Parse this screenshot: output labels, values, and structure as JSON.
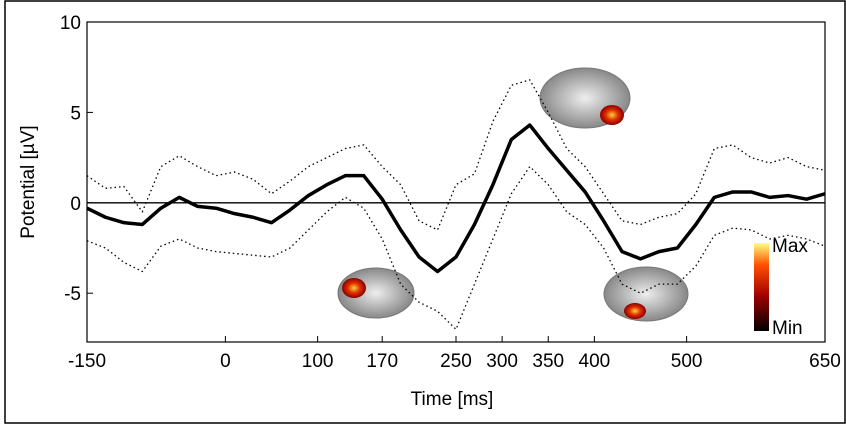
{
  "chart_data": {
    "type": "line",
    "xlabel": "Time [ms]",
    "ylabel": "Potential [µV]",
    "xlim": [
      -150,
      650
    ],
    "xticks": [
      -150,
      0,
      100,
      170,
      250,
      300,
      350,
      400,
      500,
      650
    ],
    "ylim": [
      -7.7,
      10
    ],
    "yticks": [
      -5,
      0,
      5,
      10
    ],
    "zero_line": true,
    "colorbar_labels": [
      "Max",
      "Min"
    ],
    "x": [
      -150,
      -130,
      -110,
      -90,
      -70,
      -50,
      -30,
      -10,
      10,
      30,
      50,
      70,
      90,
      110,
      130,
      150,
      170,
      190,
      210,
      230,
      250,
      270,
      290,
      310,
      330,
      350,
      370,
      390,
      410,
      430,
      450,
      470,
      490,
      510,
      530,
      550,
      570,
      590,
      610,
      630,
      650
    ],
    "series": [
      {
        "color": "#000000",
        "line_style": "solid",
        "line_width": 3.5,
        "values": [
          -0.3,
          -0.8,
          -1.1,
          -1.2,
          -0.3,
          0.3,
          -0.2,
          -0.3,
          -0.6,
          -0.8,
          -1.1,
          -0.4,
          0.4,
          1.0,
          1.5,
          1.5,
          0.2,
          -1.5,
          -3.0,
          -3.8,
          -3.0,
          -1.2,
          1.0,
          3.5,
          4.3,
          3.0,
          1.8,
          0.6,
          -1.0,
          -2.7,
          -3.1,
          -2.7,
          -2.5,
          -1.2,
          0.3,
          0.6,
          0.6,
          0.3,
          0.4,
          0.2,
          0.5
        ]
      },
      {
        "color": "#000000",
        "line_style": "dotted",
        "line_width": 1.3,
        "values": [
          1.5,
          0.8,
          0.9,
          -0.5,
          2.0,
          2.6,
          2.0,
          1.5,
          1.7,
          1.3,
          0.5,
          1.2,
          2.0,
          2.5,
          3.0,
          3.2,
          2.0,
          1.0,
          -1.0,
          -1.5,
          1.0,
          1.6,
          4.5,
          6.5,
          6.8,
          5.0,
          3.0,
          2.0,
          0.5,
          -1.0,
          -1.2,
          -0.8,
          -0.6,
          0.5,
          3.0,
          3.2,
          2.5,
          2.2,
          2.5,
          2.0,
          1.8
        ]
      },
      {
        "color": "#000000",
        "line_style": "dotted",
        "line_width": 1.3,
        "values": [
          -2.1,
          -2.5,
          -3.3,
          -3.8,
          -2.4,
          -2.0,
          -2.5,
          -2.7,
          -2.8,
          -2.9,
          -3.0,
          -2.5,
          -1.5,
          -0.5,
          0.3,
          -0.3,
          -2.0,
          -4.5,
          -5.5,
          -6.0,
          -7.0,
          -4.5,
          -2.0,
          0.5,
          2.0,
          1.0,
          -0.5,
          -1.2,
          -2.5,
          -4.5,
          -5.0,
          -4.5,
          -4.5,
          -3.5,
          -1.8,
          -1.4,
          -1.5,
          -2.0,
          -1.8,
          -2.0,
          -2.4
        ]
      }
    ]
  }
}
